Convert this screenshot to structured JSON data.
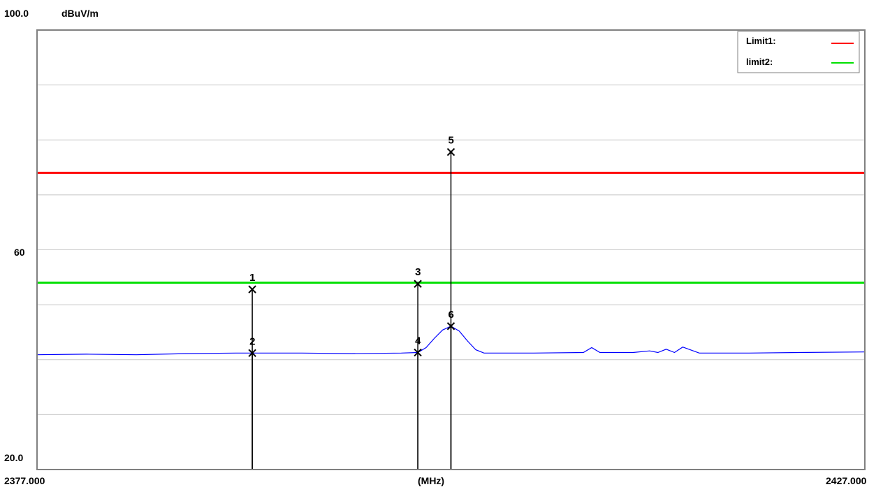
{
  "chart_data": {
    "type": "line",
    "title": "",
    "ylabel_unit": "dBuV/m",
    "xlabel": "(MHz)",
    "xlim": [
      2377.0,
      2427.0
    ],
    "ylim": [
      20.0,
      100.0
    ],
    "x_tick_labels": {
      "min": "2377.000",
      "max": "2427.000"
    },
    "y_tick_labels": [
      {
        "value": 100,
        "text": "100.0"
      },
      {
        "value": 60,
        "text": "60"
      },
      {
        "value": 20,
        "text": "20.0"
      }
    ],
    "grid_y": [
      30,
      40,
      50,
      60,
      70,
      80,
      90
    ],
    "grid": true,
    "legend_placement": "top-right",
    "limits": [
      {
        "name": "Limit1:",
        "value": 74,
        "color": "#ff0000"
      },
      {
        "name": "limit2:",
        "value": 54,
        "color": "#00e000"
      }
    ],
    "series": [
      {
        "color": "#0000ff",
        "x": [
          2377.0,
          2380.0,
          2383.0,
          2386.0,
          2389.0,
          2390.0,
          2393.0,
          2396.0,
          2399.0,
          2400.0,
          2400.5,
          2401.0,
          2401.5,
          2402.0,
          2402.5,
          2403.0,
          2403.5,
          2404.0,
          2404.5,
          2405.0,
          2407.0,
          2410.0,
          2410.5,
          2411.0,
          2413.0,
          2414.0,
          2414.5,
          2415.0,
          2415.5,
          2416.0,
          2417.0,
          2420.0,
          2423.0,
          2427.0
        ],
        "y": [
          40.9,
          41.0,
          40.9,
          41.1,
          41.2,
          41.2,
          41.2,
          41.1,
          41.2,
          41.3,
          42.2,
          43.9,
          45.4,
          46.1,
          45.2,
          43.4,
          41.8,
          41.2,
          41.2,
          41.2,
          41.2,
          41.3,
          42.2,
          41.3,
          41.3,
          41.6,
          41.3,
          41.9,
          41.3,
          42.3,
          41.2,
          41.2,
          41.3,
          41.4
        ]
      }
    ],
    "markers": [
      {
        "label": "1",
        "x": 2390.0,
        "y": 52.8
      },
      {
        "label": "2",
        "x": 2390.0,
        "y": 41.2
      },
      {
        "label": "3",
        "x": 2400.0,
        "y": 53.8
      },
      {
        "label": "4",
        "x": 2400.0,
        "y": 41.3
      },
      {
        "label": "5",
        "x": 2402.0,
        "y": 77.8
      },
      {
        "label": "6",
        "x": 2402.0,
        "y": 46.1
      }
    ]
  }
}
